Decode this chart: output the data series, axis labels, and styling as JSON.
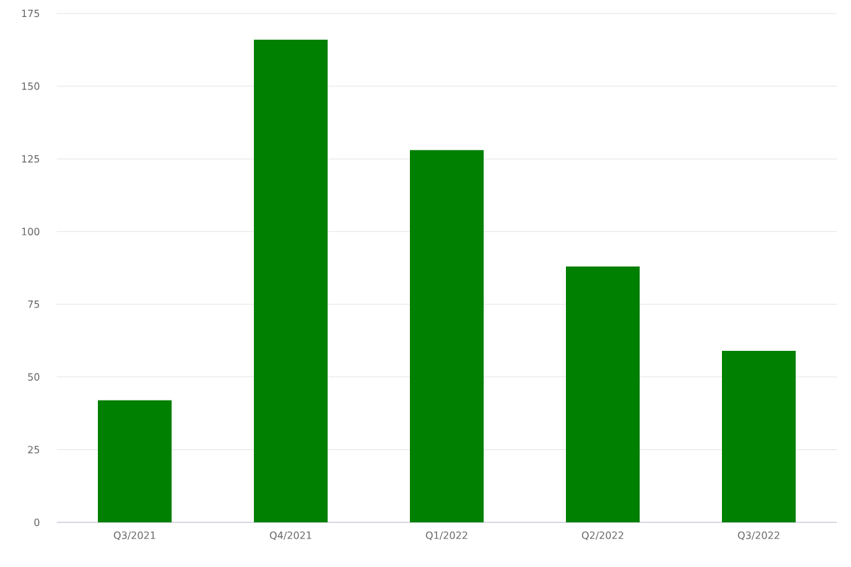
{
  "chart_data": {
    "type": "bar",
    "categories": [
      "Q3/2021",
      "Q4/2021",
      "Q1/2022",
      "Q2/2022",
      "Q3/2022"
    ],
    "values": [
      42,
      166,
      128,
      88,
      59
    ],
    "color": "#008000",
    "ylim": [
      0,
      175
    ],
    "yticks": [
      0,
      25,
      50,
      75,
      100,
      125,
      150,
      175
    ],
    "grid": "y"
  }
}
